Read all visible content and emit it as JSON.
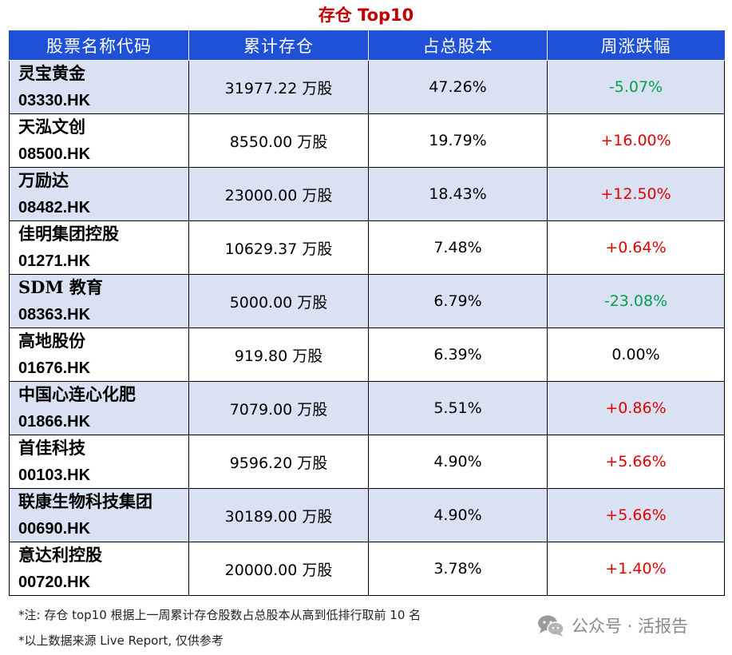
{
  "title": "存仓 Top10",
  "table": {
    "headers": [
      "股票名称代码",
      "累计存仓",
      "占总股本",
      "周涨跌幅"
    ],
    "rows": [
      {
        "name": "灵宝黄金",
        "code": "03330.HK",
        "holding": "31977.22 万股",
        "share_pct": "47.26%",
        "weekly_change": "-5.07%",
        "direction": "down"
      },
      {
        "name": "天泓文创",
        "code": "08500.HK",
        "holding": "8550.00 万股",
        "share_pct": "19.79%",
        "weekly_change": "+16.00%",
        "direction": "up"
      },
      {
        "name": "万励达",
        "code": "08482.HK",
        "holding": "23000.00 万股",
        "share_pct": "18.43%",
        "weekly_change": "+12.50%",
        "direction": "up"
      },
      {
        "name": "佳明集团控股",
        "code": "01271.HK",
        "holding": "10629.37 万股",
        "share_pct": "7.48%",
        "weekly_change": "+0.64%",
        "direction": "up"
      },
      {
        "name": "SDM 教育",
        "code": "08363.HK",
        "holding": "5000.00 万股",
        "share_pct": "6.79%",
        "weekly_change": "-23.08%",
        "direction": "down"
      },
      {
        "name": "高地股份",
        "code": "01676.HK",
        "holding": "919.80 万股",
        "share_pct": "6.39%",
        "weekly_change": "0.00%",
        "direction": "flat"
      },
      {
        "name": "中国心连心化肥",
        "code": "01866.HK",
        "holding": "7079.00 万股",
        "share_pct": "5.51%",
        "weekly_change": "+0.86%",
        "direction": "up"
      },
      {
        "name": "首佳科技",
        "code": "00103.HK",
        "holding": "9596.20 万股",
        "share_pct": "4.90%",
        "weekly_change": "+5.66%",
        "direction": "up"
      },
      {
        "name": "联康生物科技集团",
        "code": "00690.HK",
        "holding": "30189.00 万股",
        "share_pct": "4.90%",
        "weekly_change": "+5.66%",
        "direction": "up"
      },
      {
        "name": "意达利控股",
        "code": "00720.HK",
        "holding": "20000.00 万股",
        "share_pct": "3.78%",
        "weekly_change": "+1.40%",
        "direction": "up"
      }
    ]
  },
  "notes": [
    "*注:  存仓 top10 根据上一周累计存仓股数占总股本从高到低排行取前 10 名",
    "*以上数据来源 Live Report,  仅供参考"
  ],
  "watermark": {
    "text": "公众号 · 活报告",
    "icon": "wechat-icon"
  },
  "colors": {
    "title": "#c00000",
    "header_bg": "#1e50d8",
    "row_alt_bg": "#dae1f2",
    "positive": "#e00000",
    "negative": "#00a050"
  }
}
